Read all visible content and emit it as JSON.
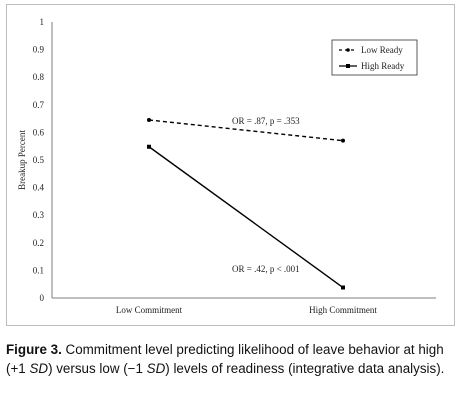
{
  "chart_data": {
    "type": "line",
    "ylabel": "Breakup Percent",
    "xlabel": "",
    "ylim": [
      0,
      1
    ],
    "yticks": [
      "0",
      "0.1",
      "0.2",
      "0.3",
      "0.4",
      "0.5",
      "0.6",
      "0.7",
      "0.8",
      "0.9",
      "1"
    ],
    "categories": [
      "Low Commitment",
      "High Commitment"
    ],
    "series": [
      {
        "name": "Low Ready",
        "values": [
          0.645,
          0.57
        ],
        "style": "dashed",
        "marker": "circle",
        "color": "#000000"
      },
      {
        "name": "High Ready",
        "values": [
          0.548,
          0.038
        ],
        "style": "solid",
        "marker": "square",
        "color": "#000000"
      }
    ],
    "annotations": [
      {
        "text": "OR = .87, p = .353",
        "series": "Low Ready"
      },
      {
        "text": "OR = .42, p < .001",
        "series": "High Ready"
      }
    ],
    "legend": "top-right",
    "grid": false
  },
  "caption": {
    "label": "Figure 3.",
    "text_1": " Commitment level predicting likelihood of leave behavior at high (+1 ",
    "sd_1": "SD",
    "text_2": ") versus low (−1 ",
    "sd_2": "SD",
    "text_3": ") levels of readiness (integrative data analysis)."
  }
}
